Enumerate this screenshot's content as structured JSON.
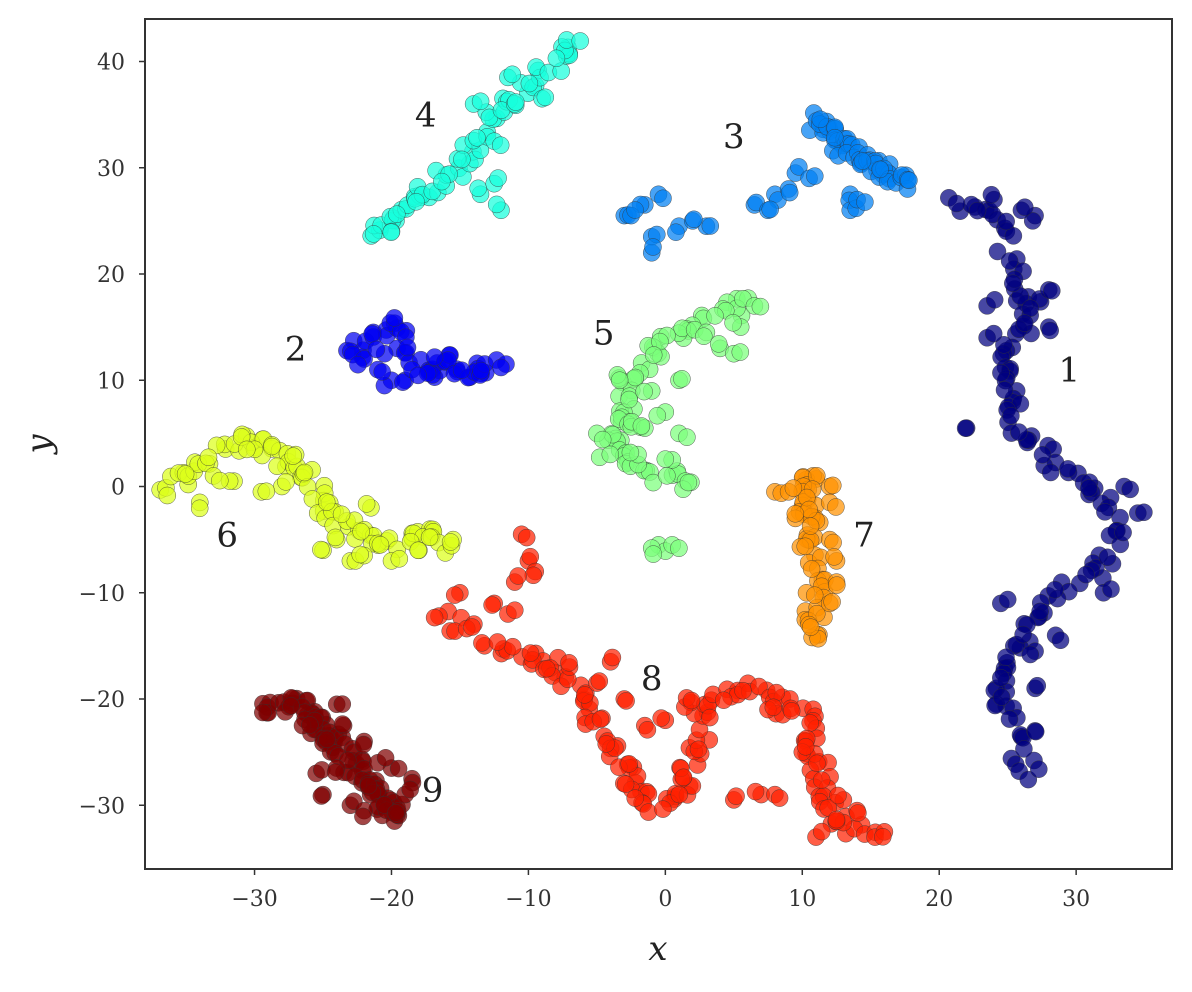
{
  "chart_data": {
    "type": "scatter",
    "title": "",
    "xlabel": "x",
    "ylabel": "y",
    "xlim": [
      -38,
      37
    ],
    "ylim": [
      -36,
      44
    ],
    "xticks": [
      -30,
      -20,
      -10,
      0,
      10,
      20,
      30
    ],
    "yticks": [
      -30,
      -20,
      -10,
      0,
      10,
      20,
      30,
      40
    ],
    "xtick_labels": [
      "−30",
      "−20",
      "−10",
      "0",
      "10",
      "20",
      "30"
    ],
    "ytick_labels": [
      "−30",
      "−20",
      "−10",
      "0",
      "10",
      "20",
      "30",
      "40"
    ],
    "grid": false,
    "legend": "none",
    "clusters": [
      {
        "label": "1",
        "color": "#00007f",
        "label_pos": [
          29.5,
          11
        ],
        "path": [
          [
            21.5,
            26.5
          ],
          [
            23,
            26
          ],
          [
            24.5,
            25
          ],
          [
            25,
            21
          ],
          [
            26,
            18
          ],
          [
            27,
            17
          ],
          [
            26,
            15
          ],
          [
            25,
            13
          ],
          [
            24.5,
            11
          ],
          [
            25,
            9
          ],
          [
            25.5,
            7
          ],
          [
            26,
            5
          ],
          [
            27.5,
            3
          ],
          [
            29,
            2
          ],
          [
            31,
            0
          ],
          [
            32.5,
            -2
          ],
          [
            33.5,
            -4
          ],
          [
            32.5,
            -7
          ],
          [
            30.5,
            -8.5
          ],
          [
            28.5,
            -10
          ],
          [
            27,
            -12
          ],
          [
            26,
            -14
          ],
          [
            25,
            -16
          ],
          [
            24.5,
            -18
          ],
          [
            24.5,
            -20
          ],
          [
            25,
            -22
          ],
          [
            26,
            -25
          ],
          [
            27,
            -27
          ]
        ],
        "extra": [
          [
            22,
            5.5
          ],
          [
            23.5,
            17
          ],
          [
            27,
            25.5
          ],
          [
            24,
            27
          ],
          [
            26,
            26
          ],
          [
            32,
            -10
          ],
          [
            27,
            -15.5
          ],
          [
            28.5,
            -14
          ],
          [
            24.5,
            -11
          ],
          [
            27,
            -19
          ],
          [
            27,
            -23
          ],
          [
            34.5,
            -2.5
          ],
          [
            33.5,
            0
          ],
          [
            28,
            18.5
          ],
          [
            25.5,
            19.5
          ],
          [
            28,
            15
          ],
          [
            23.5,
            14
          ]
        ],
        "n": 110
      },
      {
        "label": "2",
        "color": "#0000f2",
        "label_pos": [
          -27,
          13
        ],
        "path": [
          [
            -23,
            12.5
          ],
          [
            -21.5,
            14
          ],
          [
            -20,
            15.5
          ],
          [
            -19,
            13
          ],
          [
            -17.5,
            11
          ],
          [
            -16.5,
            12
          ],
          [
            -15,
            11
          ],
          [
            -13.5,
            11
          ],
          [
            -12,
            11.5
          ]
        ],
        "extra": [
          [
            -20,
            10
          ],
          [
            -19,
            10
          ],
          [
            -17,
            10.5
          ],
          [
            -22,
            12
          ],
          [
            -20.5,
            12.5
          ],
          [
            -18.5,
            11
          ],
          [
            -21,
            11
          ]
        ],
        "n": 45
      },
      {
        "label": "3",
        "color": "#007ff2",
        "label_pos": [
          5,
          33
        ],
        "path": [
          [
            11,
            34.5
          ],
          [
            12,
            33
          ],
          [
            14,
            31
          ],
          [
            16,
            30
          ],
          [
            17.5,
            28.5
          ]
        ],
        "extra": [
          [
            -3,
            25.5
          ],
          [
            -1.5,
            26.5
          ],
          [
            -0.5,
            27.5
          ],
          [
            -1,
            23.5
          ],
          [
            -1,
            22
          ],
          [
            1,
            24.5
          ],
          [
            3,
            24.5
          ],
          [
            6.5,
            26.5
          ],
          [
            8,
            27.5
          ],
          [
            9.5,
            29.5
          ],
          [
            10.5,
            29
          ],
          [
            9,
            28
          ],
          [
            7.5,
            26
          ],
          [
            13.5,
            27.5
          ],
          [
            13.5,
            26
          ],
          [
            14,
            27
          ],
          [
            -2.5,
            25.5
          ],
          [
            2,
            25
          ]
        ],
        "n": 55
      },
      {
        "label": "4",
        "color": "#18ffdd",
        "label_pos": [
          -17.5,
          35
        ],
        "path": [
          [
            -21,
            24
          ],
          [
            -19.5,
            25.5
          ],
          [
            -18,
            27
          ],
          [
            -16.5,
            28.5
          ],
          [
            -15,
            30.5
          ],
          [
            -13.5,
            33
          ],
          [
            -12,
            35.5
          ],
          [
            -10,
            38
          ],
          [
            -8,
            40
          ],
          [
            -6.5,
            42
          ]
        ],
        "extra": [
          [
            -13.5,
            27.5
          ],
          [
            -12.5,
            28.5
          ],
          [
            -12,
            26
          ],
          [
            -14,
            36
          ],
          [
            -11,
            36
          ],
          [
            -12.5,
            32.5
          ],
          [
            -20,
            24
          ],
          [
            -11.5,
            38.5
          ],
          [
            -9,
            36.5
          ]
        ],
        "n": 60
      },
      {
        "label": "5",
        "color": "#7bff7b",
        "label_pos": [
          -4.5,
          14.5
        ],
        "path": [
          [
            6,
            18
          ],
          [
            4,
            16
          ],
          [
            2,
            15
          ],
          [
            0,
            14
          ],
          [
            -1,
            12
          ],
          [
            -2.5,
            10
          ],
          [
            -3,
            8
          ],
          [
            -2.5,
            6
          ],
          [
            -3.5,
            5
          ],
          [
            -4,
            3
          ],
          [
            -2,
            2
          ],
          [
            0,
            1
          ],
          [
            1.5,
            0.5
          ]
        ],
        "extra": [
          [
            -5,
            5
          ],
          [
            -2,
            3
          ],
          [
            1,
            5
          ],
          [
            0,
            7
          ],
          [
            -1,
            9
          ],
          [
            1,
            10
          ],
          [
            4,
            13
          ],
          [
            5.5,
            15
          ],
          [
            6.5,
            17
          ],
          [
            3,
            14.5
          ],
          [
            -3.5,
            10.5
          ],
          [
            -1.5,
            5.5
          ],
          [
            0.5,
            2.5
          ],
          [
            -0.5,
            -5.5
          ],
          [
            0.5,
            -5.5
          ],
          [
            -1,
            -5.8
          ],
          [
            5,
            12.5
          ]
        ],
        "n": 65
      },
      {
        "label": "6",
        "color": "#dcff1b",
        "label_pos": [
          -32,
          -4.5
        ],
        "path": [
          [
            -36.5,
            -0.5
          ],
          [
            -35,
            1.5
          ],
          [
            -33,
            3
          ],
          [
            -31,
            4.5
          ],
          [
            -29,
            4
          ],
          [
            -28,
            2
          ],
          [
            -26,
            1
          ],
          [
            -25,
            -1.5
          ],
          [
            -24,
            -3
          ],
          [
            -22.5,
            -4
          ],
          [
            -21,
            -5.5
          ],
          [
            -19,
            -5
          ],
          [
            -17.5,
            -4.5
          ],
          [
            -16,
            -5.5
          ]
        ],
        "extra": [
          [
            -34,
            -1.5
          ],
          [
            -31.5,
            0.5
          ],
          [
            -28,
            0
          ],
          [
            -25,
            -6
          ],
          [
            -23,
            -7
          ],
          [
            -20,
            -7
          ],
          [
            -18,
            -6
          ],
          [
            -15.5,
            -5
          ],
          [
            -30,
            3.5
          ],
          [
            -27,
            3
          ],
          [
            -29.5,
            -0.5
          ],
          [
            -33,
            1
          ],
          [
            -21.5,
            -2
          ],
          [
            -22,
            -6.5
          ],
          [
            -24,
            -5
          ]
        ],
        "n": 75
      },
      {
        "label": "7",
        "color": "#ff9200",
        "label_pos": [
          14.5,
          -4.5
        ],
        "path": [
          [
            11,
            1
          ],
          [
            10.5,
            0
          ],
          [
            10,
            -1
          ],
          [
            10.5,
            -2.5
          ],
          [
            10.5,
            -4
          ],
          [
            10.5,
            -6
          ],
          [
            11,
            -8
          ],
          [
            11,
            -10
          ],
          [
            11,
            -12
          ],
          [
            11,
            -14
          ]
        ],
        "extra": [
          [
            8,
            -0.5
          ],
          [
            9,
            -0.5
          ],
          [
            12,
            0
          ],
          [
            12,
            -1.5
          ],
          [
            9.5,
            -3
          ],
          [
            12,
            -5
          ],
          [
            12.5,
            -7
          ],
          [
            12.5,
            -9
          ],
          [
            12,
            -11
          ],
          [
            10.5,
            -13
          ]
        ],
        "n": 45
      },
      {
        "label": "8",
        "color": "#ff2000",
        "label_pos": [
          -1,
          -18
        ],
        "path": [
          [
            -16.5,
            -12.5
          ],
          [
            -14.5,
            -13.5
          ],
          [
            -12,
            -15
          ],
          [
            -10,
            -16
          ],
          [
            -8.5,
            -17
          ],
          [
            -7.5,
            -18
          ],
          [
            -6,
            -20
          ],
          [
            -5,
            -22
          ],
          [
            -4,
            -24
          ],
          [
            -3,
            -26
          ],
          [
            -2.5,
            -28
          ],
          [
            -2,
            -29.5
          ],
          [
            0,
            -30
          ],
          [
            1,
            -29
          ],
          [
            1.5,
            -27
          ],
          [
            2.5,
            -25
          ],
          [
            3,
            -22
          ],
          [
            2,
            -20
          ],
          [
            4,
            -20
          ],
          [
            6,
            -19
          ],
          [
            8,
            -19.5
          ],
          [
            9,
            -21
          ],
          [
            10.5,
            -22
          ],
          [
            10.5,
            -24
          ],
          [
            11,
            -26
          ],
          [
            11.5,
            -28
          ],
          [
            12,
            -30
          ],
          [
            13,
            -32
          ],
          [
            15,
            -33
          ]
        ],
        "extra": [
          [
            -10.5,
            -4.5
          ],
          [
            -10,
            -7
          ],
          [
            -9.5,
            -8
          ],
          [
            -11,
            -9
          ],
          [
            -12.5,
            -11
          ],
          [
            -11.5,
            -12
          ],
          [
            -15,
            -10
          ],
          [
            -7,
            -17
          ],
          [
            -4,
            -16.5
          ],
          [
            -5,
            -18.5
          ],
          [
            -3,
            -20
          ],
          [
            -1.5,
            -22.5
          ],
          [
            0,
            -22
          ],
          [
            7,
            -29
          ],
          [
            5,
            -29.5
          ],
          [
            8,
            -29
          ],
          [
            14,
            -30.5
          ],
          [
            13,
            -29.5
          ],
          [
            10,
            -25
          ],
          [
            12.5,
            -31.5
          ],
          [
            11,
            -33
          ],
          [
            16,
            -32.5
          ],
          [
            7.5,
            -21
          ]
        ],
        "n": 130
      },
      {
        "label": "9",
        "color": "#7f0000",
        "label_pos": [
          -17,
          -28.5
        ],
        "path": [
          [
            -29,
            -21
          ],
          [
            -27,
            -20.5
          ],
          [
            -25.5,
            -22
          ],
          [
            -24.5,
            -24
          ],
          [
            -23,
            -26
          ],
          [
            -21.5,
            -28
          ],
          [
            -20.5,
            -30
          ],
          [
            -19.5,
            -31
          ]
        ],
        "extra": [
          [
            -23,
            -30
          ],
          [
            -22,
            -30.5
          ],
          [
            -25.5,
            -27
          ],
          [
            -25,
            -29
          ],
          [
            -24,
            -26.5
          ],
          [
            -20,
            -26.5
          ],
          [
            -18.5,
            -27.5
          ],
          [
            -19,
            -29
          ],
          [
            -22,
            -24
          ],
          [
            -24,
            -20.5
          ],
          [
            -26.5,
            -22.5
          ],
          [
            -21,
            -26
          ],
          [
            -23.5,
            -22.5
          ]
        ],
        "n": 85
      }
    ]
  }
}
